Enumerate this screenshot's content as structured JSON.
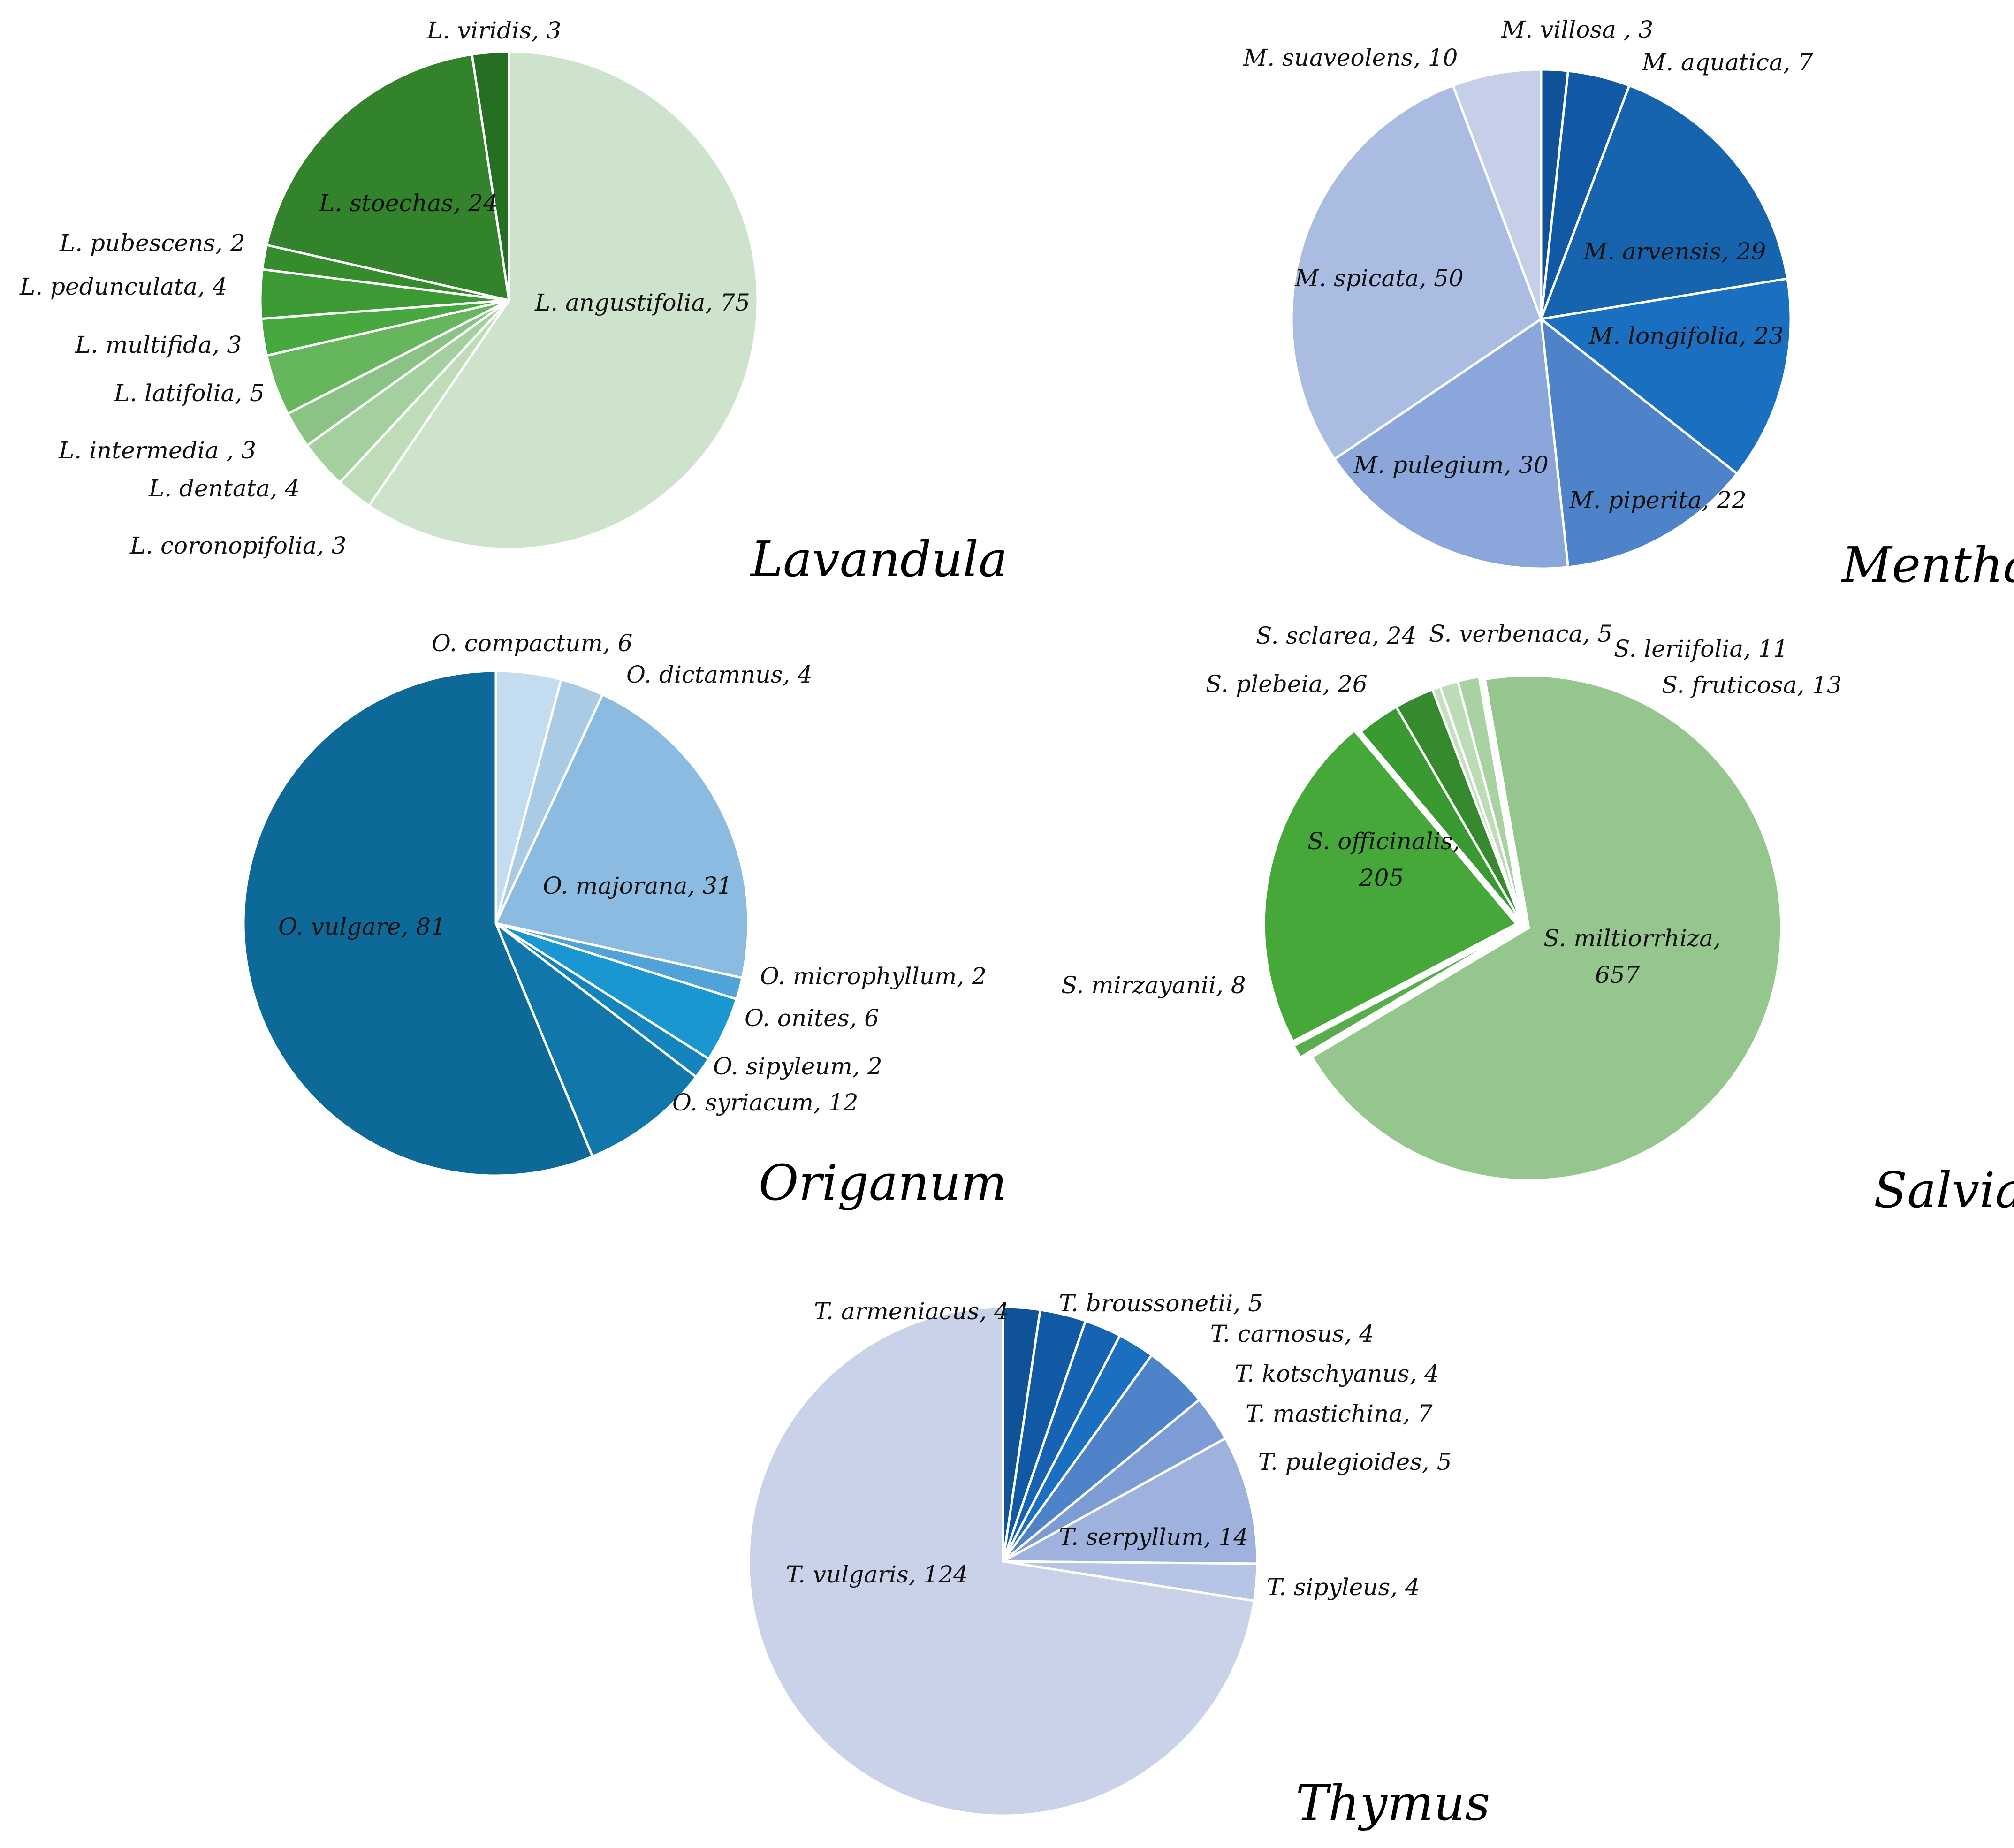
{
  "chart_data": [
    {
      "type": "pie",
      "title": "Lavandula",
      "slices": [
        {
          "name": "L.  angustifolia",
          "value": 75,
          "color": "#cde3cb"
        },
        {
          "name": "L.  coronopifolia",
          "value": 3,
          "color": "#bedcb8"
        },
        {
          "name": "L.  dentata",
          "value": 4,
          "color": "#a3d09e"
        },
        {
          "name": "L.  intermedia  ",
          "value": 3,
          "color": "#8bc386"
        },
        {
          "name": "L.  latifolia",
          "value": 5,
          "color": "#66b65e"
        },
        {
          "name": "L.  multifida",
          "value": 3,
          "color": "#46a83e"
        },
        {
          "name": "L.  pedunculata",
          "value": 4,
          "color": "#3b9a33"
        },
        {
          "name": "L.  pubescens",
          "value": 2,
          "color": "#348c2d"
        },
        {
          "name": "L.  stoechas",
          "value": 24,
          "color": "#32832b"
        },
        {
          "name": "L.  viridis",
          "value": 3,
          "color": "#266e22"
        }
      ]
    },
    {
      "type": "pie",
      "title": "Mentha",
      "slices": [
        {
          "name": "M.  villosa  ",
          "value": 3,
          "color": "#0f5297"
        },
        {
          "name": "M.  aquatica",
          "value": 7,
          "color": "#1159a4"
        },
        {
          "name": "M.  arvensis",
          "value": 29,
          "color": "#1663ae"
        },
        {
          "name": "M.  longifolia",
          "value": 23,
          "color": "#1a6fc0"
        },
        {
          "name": "M.  piperita",
          "value": 22,
          "color": "#4f83c9"
        },
        {
          "name": "M.  pulegium",
          "value": 30,
          "color": "#8aa6da"
        },
        {
          "name": "M.  spicata",
          "value": 50,
          "color": "#aabce1"
        },
        {
          "name": "M.  suaveolens",
          "value": 10,
          "color": "#c5d0e8"
        }
      ]
    },
    {
      "type": "pie",
      "title": "Origanum",
      "slices": [
        {
          "name": "O.  compactum",
          "value": 6,
          "color": "#c4dcf0"
        },
        {
          "name": "O.  dictamnus",
          "value": 4,
          "color": "#a9cbe6"
        },
        {
          "name": "O.  majorana",
          "value": 31,
          "color": "#8cbbe1"
        },
        {
          "name": "O.  microphyllum",
          "value": 2,
          "color": "#4fa3d8"
        },
        {
          "name": "O.  onites",
          "value": 6,
          "color": "#1a96d1"
        },
        {
          "name": "O.  sipyleum",
          "value": 2,
          "color": "#1384bd"
        },
        {
          "name": "O.  syriacum",
          "value": 12,
          "color": "#1177ab"
        },
        {
          "name": "O.  vulgare",
          "value": 81,
          "color": "#0d6997"
        }
      ]
    },
    {
      "type": "pie",
      "title": "Salvia",
      "slices": [
        {
          "name": "S.  verbenaca",
          "value": 5,
          "color": "#c7e0c2"
        },
        {
          "name": "S.  leriifolia",
          "value": 11,
          "color": "#bcdcb6"
        },
        {
          "name": "S.  fruticosa",
          "value": 13,
          "color": "#a8d2a2"
        },
        {
          "name": "S.  miltiorrhiza",
          "value": 657,
          "color": "#95c68e"
        },
        {
          "name": "S.  mirzayanii",
          "value": 8,
          "color": "#58ad4f"
        },
        {
          "name": "S.  officinalis",
          "value": 205,
          "color": "#47a83a"
        },
        {
          "name": "S.  plebeia",
          "value": 26,
          "color": "#3a9a32"
        },
        {
          "name": "S.  sclarea",
          "value": 24,
          "color": "#348a2c"
        }
      ]
    },
    {
      "type": "pie",
      "title": "Thymus",
      "slices": [
        {
          "name": "T.  armeniacus",
          "value": 4,
          "color": "#0f5297"
        },
        {
          "name": "T.  broussonetii",
          "value": 5,
          "color": "#1159a4"
        },
        {
          "name": "T.  carnosus",
          "value": 4,
          "color": "#1663b3"
        },
        {
          "name": "T.  kotschyanus",
          "value": 4,
          "color": "#1a6fc0"
        },
        {
          "name": "T.  mastichina",
          "value": 7,
          "color": "#4f83c9"
        },
        {
          "name": "T.  pulegioides",
          "value": 5,
          "color": "#7d9bd5"
        },
        {
          "name": "T.  serpyllum",
          "value": 14,
          "color": "#9fb2de"
        },
        {
          "name": "T.  sipyleus",
          "value": 4,
          "color": "#b6c4e6"
        },
        {
          "name": "T.  vulgaris",
          "value": 124,
          "color": "#c9d2e8"
        }
      ]
    }
  ]
}
